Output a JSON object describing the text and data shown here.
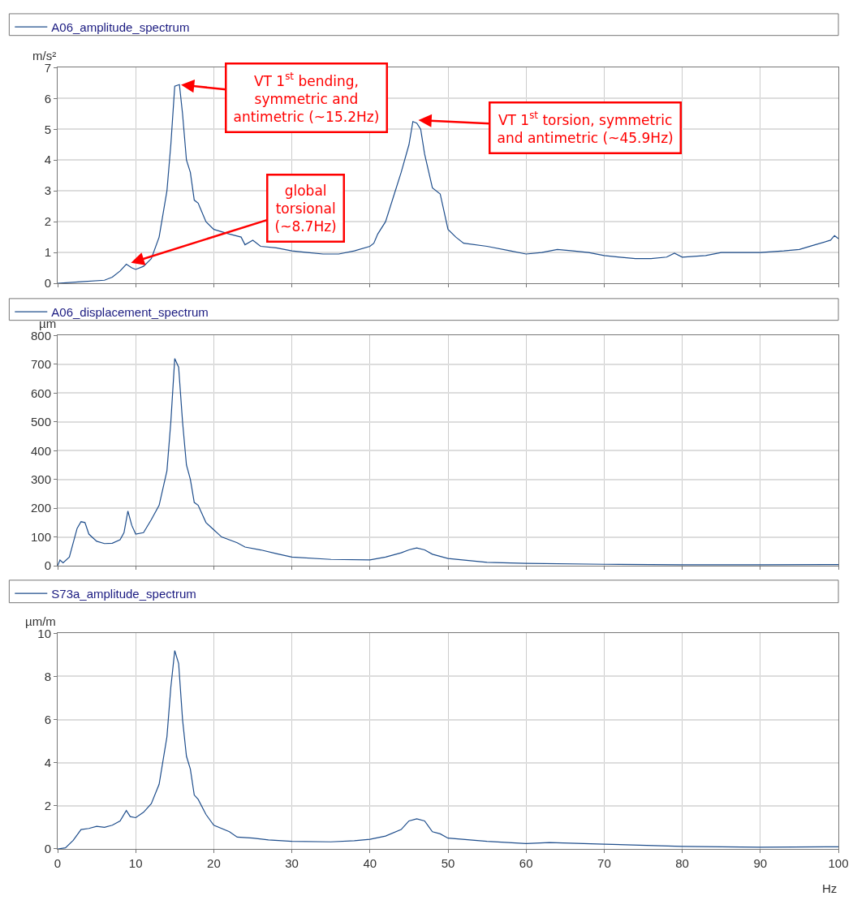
{
  "chart_data": [
    {
      "type": "line",
      "ylabel": "m/s²",
      "legend": "top",
      "grid": true,
      "tick_labels": "y",
      "xlim": [
        0,
        100
      ],
      "xticks": [
        0,
        10,
        20,
        30,
        40,
        50,
        60,
        70,
        80,
        90,
        100
      ],
      "ylim": [
        0,
        7
      ],
      "yticks": [
        0,
        1,
        2,
        3,
        4,
        5,
        6,
        7
      ],
      "series": [
        {
          "name": "A06_amplitude_spectrum",
          "color": "#1f4e8c",
          "x": [
            0,
            3,
            6,
            7,
            8,
            8.8,
            9.5,
            10,
            11,
            12,
            13,
            14,
            14.5,
            15,
            15.6,
            16,
            16.5,
            17,
            17.5,
            18,
            19,
            20,
            22,
            23.5,
            24,
            25,
            26,
            28,
            30,
            32,
            34,
            36,
            38,
            40,
            40.5,
            41,
            42,
            43,
            44,
            45,
            45.5,
            46,
            46.5,
            47,
            48,
            49,
            50,
            51,
            52,
            55,
            58,
            60,
            62,
            64,
            66,
            68,
            70,
            72,
            74,
            76,
            78,
            79,
            80,
            83,
            85,
            88,
            90,
            93,
            95,
            97,
            99,
            99.5,
            100
          ],
          "values": [
            0,
            0.05,
            0.1,
            0.2,
            0.4,
            0.62,
            0.5,
            0.45,
            0.55,
            0.8,
            1.5,
            3.0,
            4.5,
            6.4,
            6.45,
            5.5,
            4,
            3.6,
            2.7,
            2.6,
            2.0,
            1.75,
            1.6,
            1.5,
            1.25,
            1.4,
            1.2,
            1.15,
            1.05,
            1.0,
            0.95,
            0.95,
            1.05,
            1.2,
            1.3,
            1.6,
            2.0,
            2.8,
            3.6,
            4.5,
            5.25,
            5.2,
            5.0,
            4.2,
            3.1,
            2.9,
            1.75,
            1.5,
            1.3,
            1.2,
            1.05,
            0.95,
            1.0,
            1.1,
            1.05,
            1.0,
            0.9,
            0.85,
            0.8,
            0.8,
            0.85,
            0.98,
            0.85,
            0.9,
            1.0,
            1.0,
            1.0,
            1.05,
            1.1,
            1.25,
            1.4,
            1.55,
            1.45
          ]
        }
      ],
      "annotations": [
        {
          "text": "VT 1$^{st}$ bending,\nsymmetric and\nantimetric (~15.2Hz)",
          "x": 15.6,
          "y": 6.45
        },
        {
          "text": "VT 1$^{st}$ torsion, symmetric\nand antimetric (~45.9Hz)",
          "x": 46,
          "y": 5.3
        },
        {
          "text": "global\ntorsional\n(~8.7Hz)",
          "x": 9.2,
          "y": 0.65
        }
      ]
    },
    {
      "type": "line",
      "ylabel": "µm",
      "legend": "top",
      "grid": true,
      "tick_labels": "y",
      "xlim": [
        0,
        100
      ],
      "xticks": [
        0,
        10,
        20,
        30,
        40,
        50,
        60,
        70,
        80,
        90,
        100
      ],
      "ylim": [
        0,
        800
      ],
      "yticks": [
        0,
        100,
        200,
        300,
        400,
        500,
        600,
        700,
        800
      ],
      "series": [
        {
          "name": "A06_displacement_spectrum",
          "color": "#1f4e8c",
          "x": [
            0,
            0.3,
            0.7,
            1.5,
            2.5,
            3,
            3.5,
            4,
            5,
            6,
            7,
            8,
            8.5,
            9,
            9.5,
            10,
            11,
            12,
            13,
            14,
            14.5,
            15,
            15.5,
            16,
            16.5,
            17,
            17.5,
            18,
            19,
            20,
            21,
            23,
            24,
            26,
            28,
            30,
            35,
            40,
            42,
            44,
            45,
            46,
            47,
            48,
            50,
            55,
            60,
            70,
            80,
            90,
            100
          ],
          "values": [
            0,
            20,
            10,
            30,
            130,
            153,
            150,
            110,
            85,
            77,
            78,
            90,
            115,
            190,
            140,
            110,
            115,
            160,
            210,
            330,
            500,
            720,
            690,
            500,
            350,
            300,
            220,
            210,
            150,
            125,
            100,
            80,
            65,
            55,
            42,
            30,
            22,
            20,
            30,
            45,
            55,
            62,
            55,
            40,
            25,
            12,
            8,
            5,
            3,
            3,
            4
          ]
        }
      ]
    },
    {
      "type": "line",
      "ylabel": "µm/m",
      "xlabel": "Hz",
      "legend": "top",
      "grid": true,
      "xlim": [
        0,
        100
      ],
      "xticks": [
        0,
        10,
        20,
        30,
        40,
        50,
        60,
        70,
        80,
        90,
        100
      ],
      "ylim": [
        0,
        10
      ],
      "yticks": [
        0,
        2,
        4,
        6,
        8,
        10
      ],
      "series": [
        {
          "name": "S73a_amplitude_spectrum",
          "color": "#1f4e8c",
          "x": [
            0,
            1,
            2,
            3,
            4,
            5,
            6,
            7,
            8,
            8.8,
            9.3,
            10,
            11,
            12,
            13,
            14,
            14.5,
            15,
            15.5,
            16,
            16.5,
            17,
            17.5,
            18,
            19,
            20,
            22,
            23,
            25,
            27,
            30,
            35,
            38,
            40,
            42,
            44,
            45,
            46,
            47,
            48,
            49,
            50,
            55,
            60,
            63,
            70,
            80,
            90,
            100
          ],
          "values": [
            0,
            0.05,
            0.4,
            0.9,
            0.95,
            1.05,
            1.0,
            1.1,
            1.3,
            1.78,
            1.5,
            1.45,
            1.7,
            2.1,
            3.0,
            5.2,
            7.5,
            9.2,
            8.6,
            6.0,
            4.3,
            3.7,
            2.5,
            2.3,
            1.6,
            1.1,
            0.8,
            0.55,
            0.5,
            0.42,
            0.35,
            0.33,
            0.38,
            0.45,
            0.6,
            0.9,
            1.3,
            1.4,
            1.3,
            0.8,
            0.7,
            0.5,
            0.35,
            0.25,
            0.3,
            0.22,
            0.12,
            0.08,
            0.1
          ]
        }
      ]
    }
  ]
}
